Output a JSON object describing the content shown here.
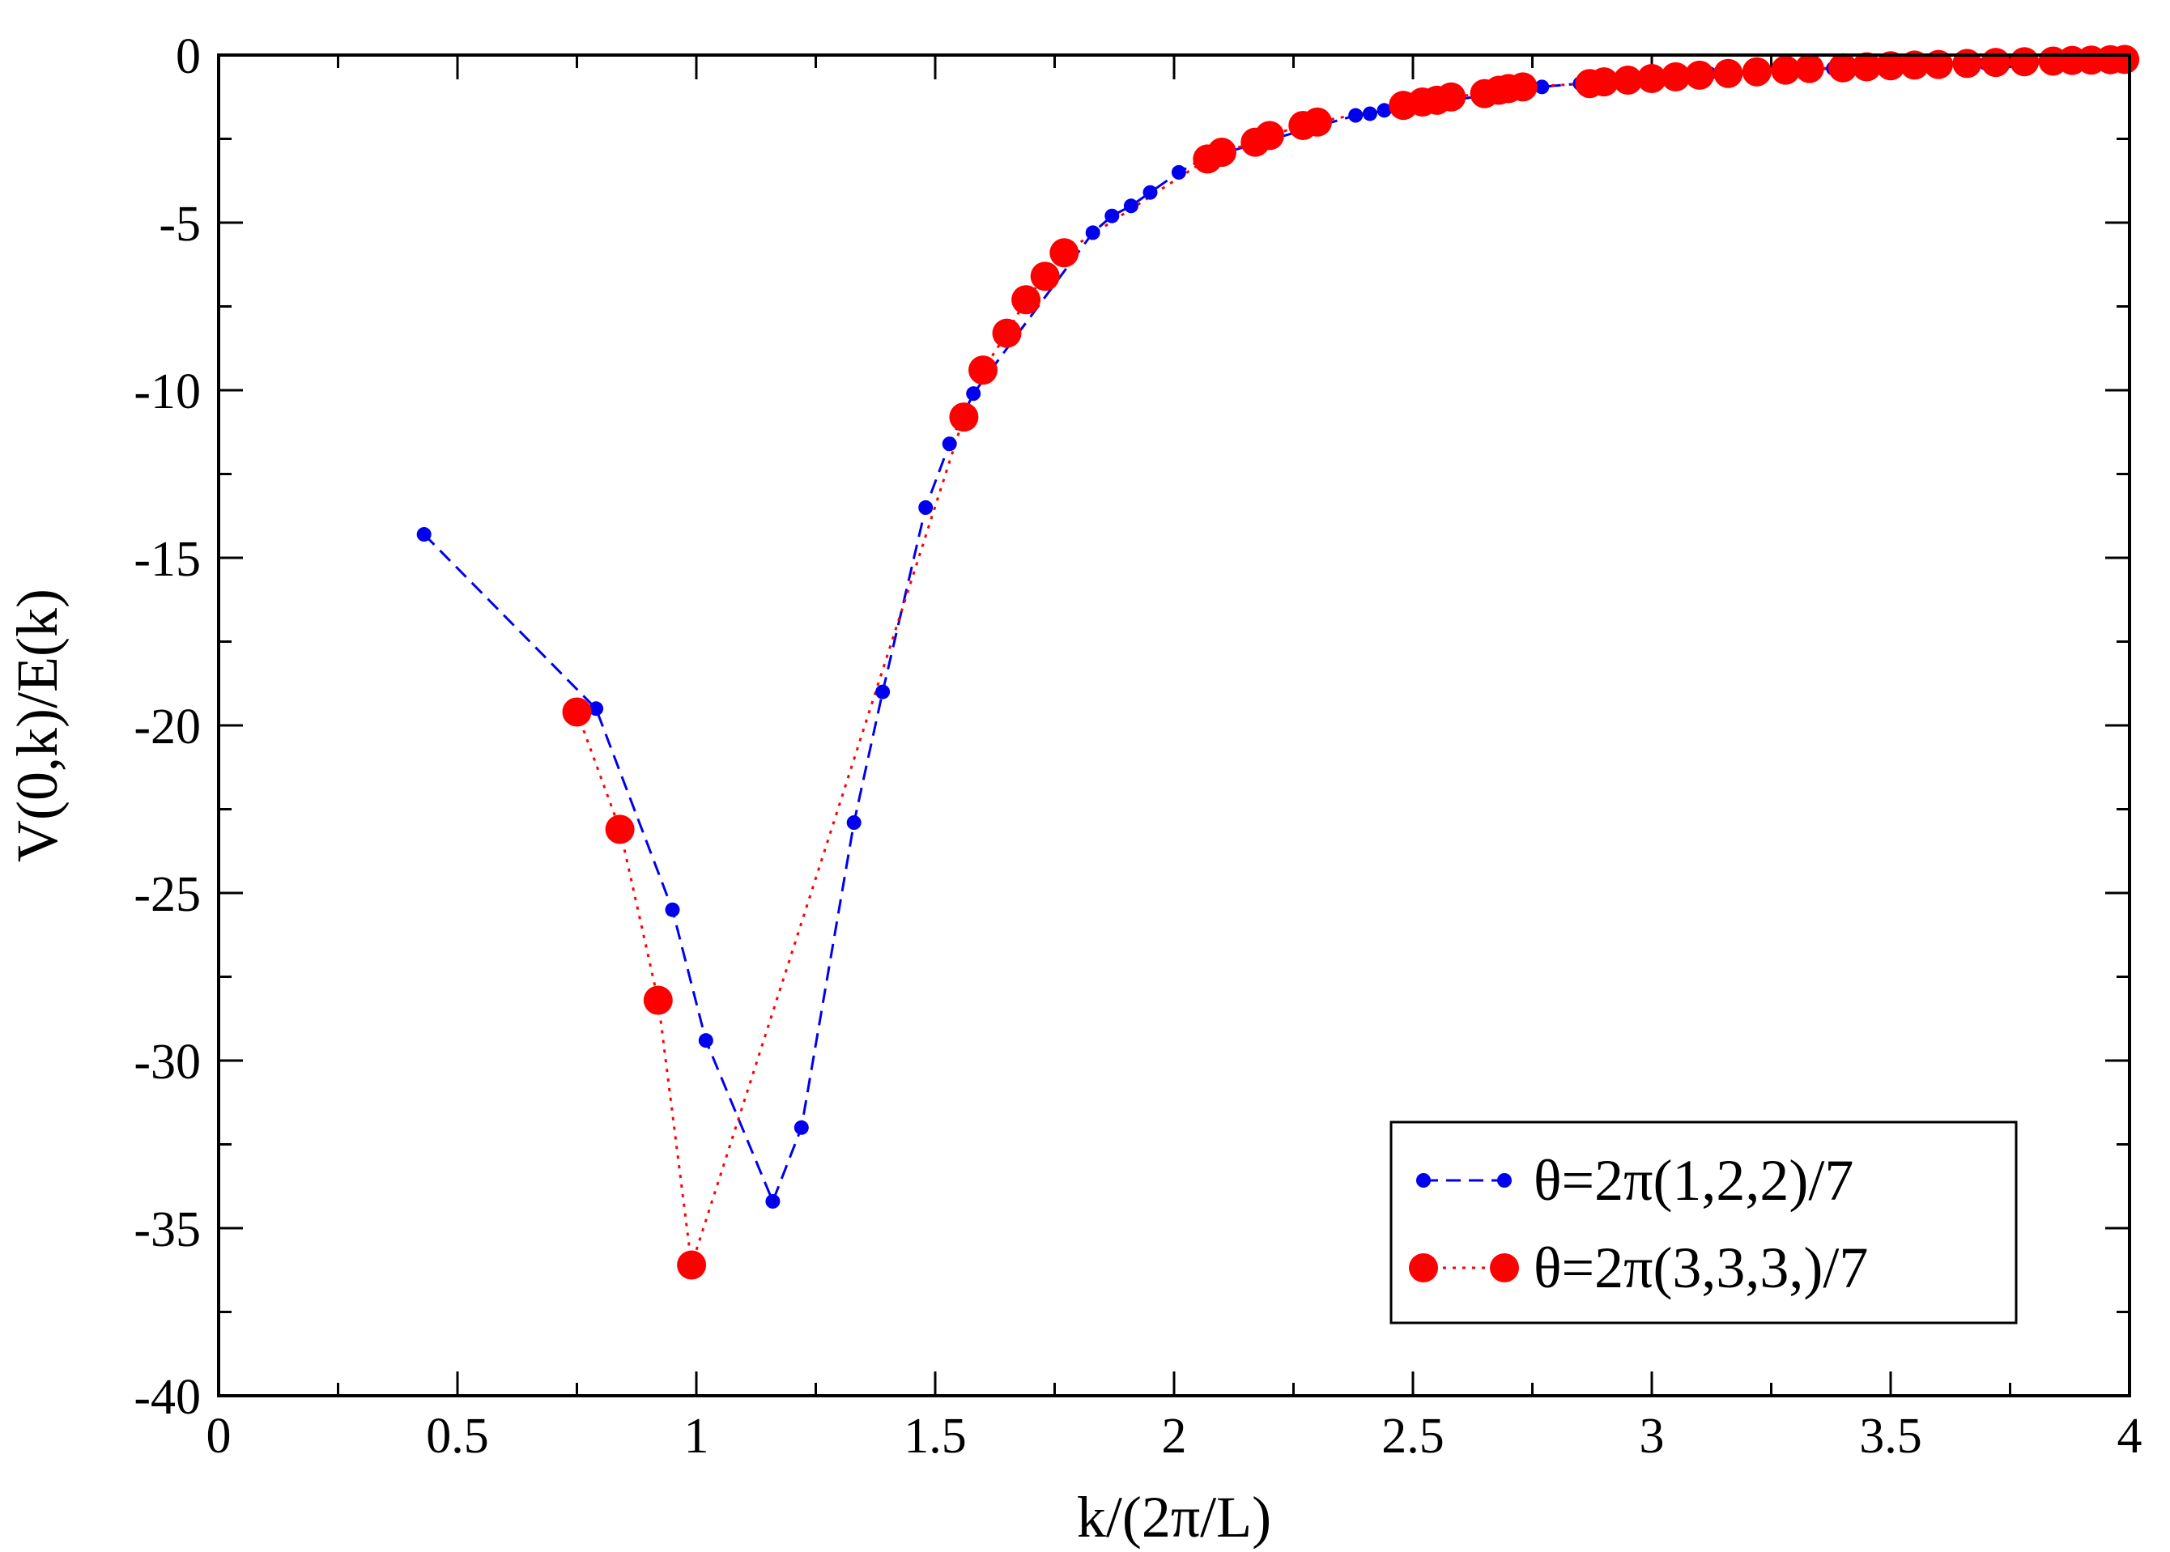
{
  "chart_data": {
    "type": "line",
    "title": "",
    "xlabel": "k/(2π/L)",
    "ylabel": "V(0,k)/E(k)",
    "xlim": [
      0,
      4
    ],
    "ylim": [
      -40,
      0
    ],
    "x_ticks": [
      "0",
      "0.5",
      "1",
      "1.5",
      "2",
      "2.5",
      "3",
      "3.5",
      "4"
    ],
    "y_ticks": [
      "0",
      "-5",
      "-10",
      "-15",
      "-20",
      "-25",
      "-30",
      "-35",
      "-40"
    ],
    "legend_position": "bottom-right",
    "series": [
      {
        "name": "θ=2π(1,2,2)/7",
        "color": "#0000ee",
        "line_style": "dashed",
        "marker": "small-circle",
        "x": [
          0.43,
          0.79,
          0.95,
          1.02,
          1.16,
          1.22,
          1.33,
          1.39,
          1.48,
          1.53,
          1.58,
          1.83,
          1.87,
          1.91,
          1.95,
          2.01,
          2.06,
          2.38,
          2.41,
          2.44,
          2.77,
          2.85,
          3.12,
          3.38,
          3.55,
          3.7,
          3.85,
          3.95,
          4.0
        ],
        "values": [
          -14.3,
          -19.5,
          -25.5,
          -29.4,
          -34.2,
          -32.0,
          -22.9,
          -19.0,
          -13.5,
          -11.6,
          -10.1,
          -5.3,
          -4.8,
          -4.5,
          -4.1,
          -3.5,
          -3.1,
          -1.8,
          -1.75,
          -1.65,
          -0.95,
          -0.85,
          -0.55,
          -0.4,
          -0.3,
          -0.25,
          -0.2,
          -0.15,
          -0.12
        ]
      },
      {
        "name": "θ=2π(3,3,3,)/7",
        "color": "#ff0000",
        "line_style": "dotted",
        "marker": "large-circle",
        "x": [
          0.75,
          0.84,
          0.92,
          0.99,
          1.56,
          1.6,
          1.65,
          1.69,
          1.73,
          1.77,
          2.07,
          2.1,
          2.17,
          2.2,
          2.27,
          2.3,
          2.48,
          2.52,
          2.55,
          2.58,
          2.65,
          2.68,
          2.7,
          2.73,
          2.87,
          2.9,
          2.95,
          3.0,
          3.05,
          3.1,
          3.16,
          3.22,
          3.28,
          3.33,
          3.4,
          3.45,
          3.5,
          3.55,
          3.6,
          3.66,
          3.72,
          3.78,
          3.84,
          3.88,
          3.92,
          3.96,
          3.99
        ],
        "values": [
          -19.6,
          -23.1,
          -28.2,
          -36.1,
          -10.8,
          -9.4,
          -8.3,
          -7.3,
          -6.6,
          -5.9,
          -3.1,
          -2.9,
          -2.6,
          -2.4,
          -2.1,
          -2.0,
          -1.5,
          -1.4,
          -1.35,
          -1.25,
          -1.15,
          -1.05,
          -1.0,
          -0.95,
          -0.85,
          -0.8,
          -0.75,
          -0.7,
          -0.65,
          -0.6,
          -0.55,
          -0.5,
          -0.45,
          -0.4,
          -0.38,
          -0.35,
          -0.32,
          -0.3,
          -0.28,
          -0.25,
          -0.22,
          -0.2,
          -0.18,
          -0.16,
          -0.15,
          -0.14,
          -0.13
        ]
      }
    ]
  }
}
